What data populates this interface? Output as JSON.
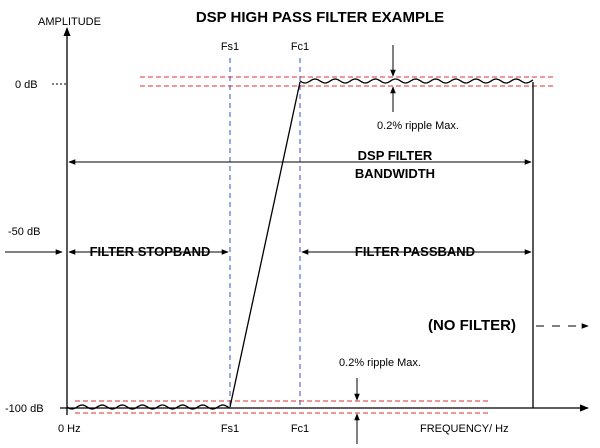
{
  "title": "DSP HIGH PASS FILTER EXAMPLE",
  "y_axis": {
    "label": "AMPLITUDE",
    "ticks": [
      "0 dB",
      "-50 dB",
      "-100 dB"
    ]
  },
  "x_axis": {
    "label": "FREQUENCY/ Hz",
    "ticks": [
      "0 Hz",
      "Fs1",
      "Fc1"
    ]
  },
  "markers": {
    "top": [
      "Fs1",
      "Fc1"
    ]
  },
  "ripple_labels": [
    "0.2% ripple Max.",
    "0.2% ripple Max."
  ],
  "bandwidth_label": [
    "DSP FILTER",
    "BANDWIDTH"
  ],
  "stopband_label": "FILTER STOPBAND",
  "passband_label": "FILTER PASSBAND",
  "no_filter_label": "(NO FILTER)"
}
